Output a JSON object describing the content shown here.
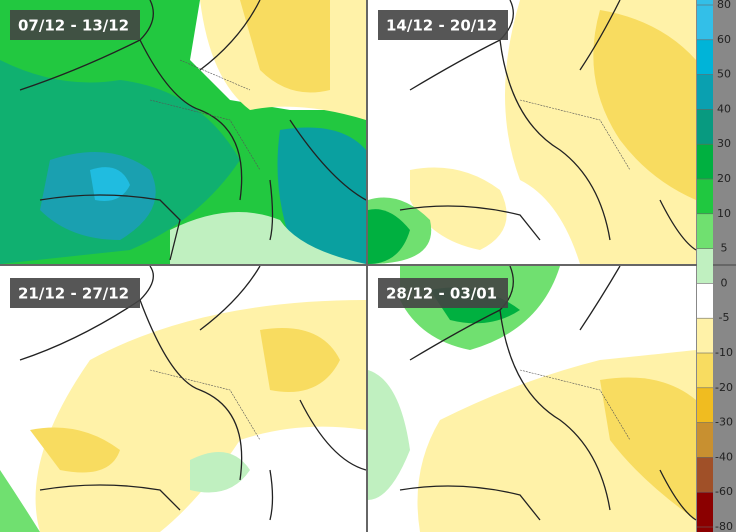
{
  "panels": [
    {
      "label": "07/12 - 13/12"
    },
    {
      "label": "14/12 - 20/12"
    },
    {
      "label": "21/12 - 27/12"
    },
    {
      "label": "28/12 - 03/01"
    }
  ],
  "colorbar": {
    "ticks": [
      80,
      60,
      50,
      40,
      30,
      20,
      10,
      5,
      0,
      -5,
      -10,
      -20,
      -30,
      -40,
      -60,
      -80
    ],
    "colors": [
      "#33bfe8",
      "#00b4d8",
      "#0aa0b0",
      "#089a80",
      "#00b040",
      "#20c840",
      "#70e070",
      "#c0f0c0",
      "#ffffff",
      "#fff2a8",
      "#f8dc60",
      "#f0bc20",
      "#c89030",
      "#a05028",
      "#8b0000"
    ]
  }
}
